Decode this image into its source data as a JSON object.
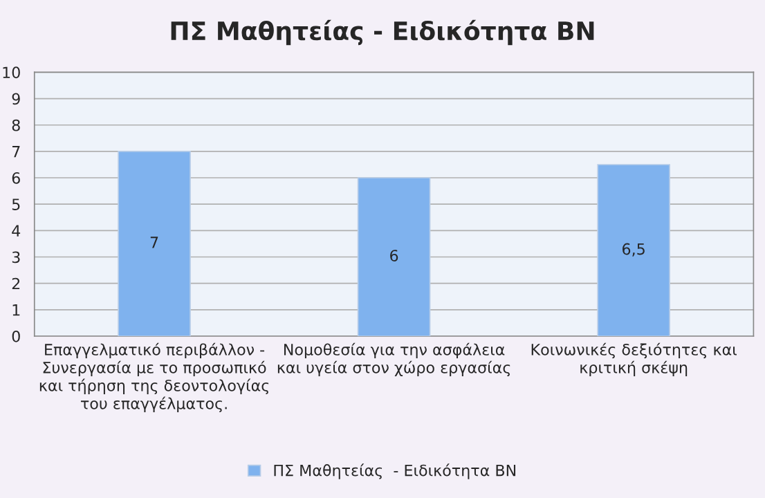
{
  "chart_data": {
    "type": "bar",
    "title": "ΠΣ Μαθητείας - Ειδικότητα ΒΝ",
    "categories": [
      "Επαγγελματικό περιβάλλον -\nΣυνεργασία με το προσωπικό\nκαι τήρηση της δεοντολογίας\nτου επαγγέλματος.",
      "Νομοθεσία για την ασφάλεια\nκαι υγεία στον χώρο εργασίας",
      "Κοινωνικές δεξιότητες και\nκριτική σκέψη"
    ],
    "series": [
      {
        "name": "ΠΣ Μαθητείας  - Ειδικότητα ΒΝ",
        "color": "#7fb2ee",
        "values": [
          7,
          6,
          6.5
        ],
        "value_labels": [
          "7",
          "6",
          "6,5"
        ]
      }
    ],
    "ylim": [
      0,
      10
    ],
    "yticks": [
      0,
      1,
      2,
      3,
      4,
      5,
      6,
      7,
      8,
      9,
      10
    ],
    "grid": "y",
    "legend": "bottom"
  }
}
